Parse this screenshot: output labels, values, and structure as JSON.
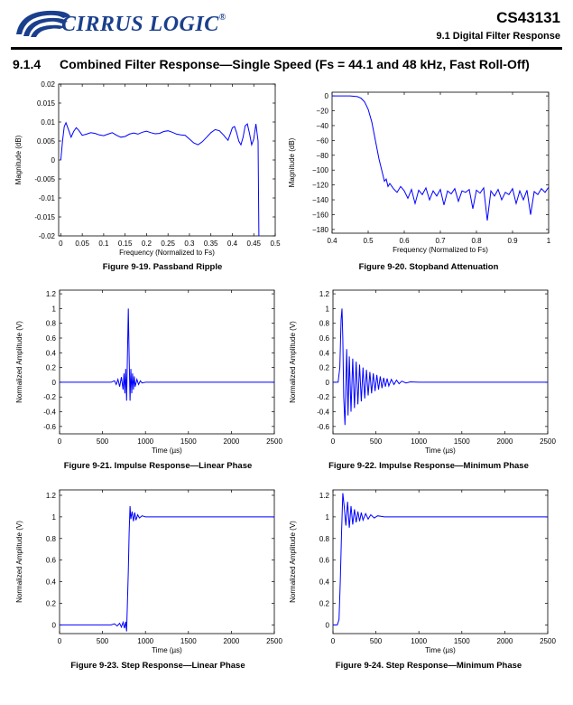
{
  "header": {
    "company": "CIRRUS LOGIC",
    "trademark": "®",
    "doc_id": "CS43131",
    "section": "9.1 Digital Filter Response"
  },
  "section_title": {
    "number": "9.1.4",
    "text": "Combined Filter Response—Single Speed (Fs = 44.1 and 48 kHz, Fast Roll-Off)"
  },
  "colors": {
    "trace": "#0000ff",
    "brand": "#1a3f8c"
  },
  "chart_data": [
    {
      "id": "fig19",
      "type": "line",
      "caption": "Figure 9-19. Passband Ripple",
      "xlabel": "Frequency (Normalized to Fs)",
      "ylabel": "Magnitude (dB)",
      "xlim": [
        -0.005,
        0.5
      ],
      "ylim": [
        -0.02,
        0.02
      ],
      "xticks": [
        0,
        0.05,
        0.1,
        0.15,
        0.2,
        0.25,
        0.3,
        0.35,
        0.4,
        0.45,
        0.5
      ],
      "xtick_labels": [
        "0",
        "0.05",
        "0.1",
        "0.15",
        "0.2",
        "0.25",
        "0.3",
        "0.35",
        "0.4",
        "0.45",
        "0.5"
      ],
      "yticks": [
        -0.02,
        -0.015,
        -0.01,
        -0.005,
        0,
        0.005,
        0.01,
        0.015,
        0.02
      ],
      "ytick_labels": [
        "-0.02",
        "-0.015",
        "-0.01",
        "-0.005",
        "0",
        "0.005",
        "0.01",
        "0.015",
        "0.02"
      ],
      "grid": false,
      "x": [
        0,
        0.004,
        0.008,
        0.012,
        0.018,
        0.024,
        0.03,
        0.036,
        0.042,
        0.05,
        0.06,
        0.07,
        0.08,
        0.09,
        0.1,
        0.11,
        0.12,
        0.13,
        0.14,
        0.15,
        0.16,
        0.17,
        0.18,
        0.19,
        0.2,
        0.21,
        0.22,
        0.23,
        0.24,
        0.25,
        0.26,
        0.27,
        0.28,
        0.29,
        0.3,
        0.31,
        0.32,
        0.33,
        0.34,
        0.35,
        0.36,
        0.37,
        0.38,
        0.385,
        0.39,
        0.395,
        0.4,
        0.405,
        0.41,
        0.415,
        0.42,
        0.425,
        0.43,
        0.435,
        0.44,
        0.445,
        0.45,
        0.455,
        0.46,
        0.462
      ],
      "y": [
        0,
        0.005,
        0.0088,
        0.0098,
        0.008,
        0.006,
        0.0075,
        0.0085,
        0.0078,
        0.0065,
        0.0068,
        0.0072,
        0.007,
        0.0066,
        0.0064,
        0.0068,
        0.0072,
        0.0065,
        0.006,
        0.0062,
        0.0068,
        0.0071,
        0.0068,
        0.0073,
        0.0076,
        0.0072,
        0.0069,
        0.007,
        0.0075,
        0.0077,
        0.0073,
        0.0068,
        0.0066,
        0.0065,
        0.0055,
        0.0045,
        0.004,
        0.0048,
        0.006,
        0.0072,
        0.008,
        0.0077,
        0.0065,
        0.0058,
        0.0052,
        0.0068,
        0.0085,
        0.0088,
        0.0072,
        0.005,
        0.004,
        0.006,
        0.009,
        0.0095,
        0.007,
        0.004,
        0.0055,
        0.0095,
        0.005,
        -0.02
      ]
    },
    {
      "id": "fig20",
      "type": "line",
      "caption": "Figure 9-20. Stopband Attenuation",
      "xlabel": "Frequency (Normalized to Fs)",
      "ylabel": "Magnitude (dB)",
      "xlim": [
        0.4,
        1
      ],
      "ylim": [
        -185,
        5
      ],
      "xticks": [
        0.4,
        0.5,
        0.6,
        0.7,
        0.8,
        0.9,
        1
      ],
      "xtick_labels": [
        "0.4",
        "0.5",
        "0.6",
        "0.7",
        "0.8",
        "0.9",
        "1"
      ],
      "yticks": [
        0,
        -20,
        -40,
        -60,
        -80,
        -100,
        -120,
        -140,
        -160,
        -180
      ],
      "ytick_labels": [
        "0",
        "−20",
        "−40",
        "−60",
        "−80",
        "−100",
        "−120",
        "−140",
        "−160",
        "−180"
      ],
      "grid": false,
      "x": [
        0.4,
        0.45,
        0.47,
        0.48,
        0.49,
        0.5,
        0.51,
        0.52,
        0.53,
        0.54,
        0.545,
        0.55,
        0.555,
        0.56,
        0.57,
        0.58,
        0.59,
        0.6,
        0.61,
        0.62,
        0.63,
        0.64,
        0.65,
        0.66,
        0.67,
        0.68,
        0.69,
        0.7,
        0.71,
        0.72,
        0.73,
        0.74,
        0.75,
        0.76,
        0.77,
        0.78,
        0.79,
        0.8,
        0.81,
        0.82,
        0.83,
        0.84,
        0.85,
        0.86,
        0.87,
        0.88,
        0.89,
        0.9,
        0.91,
        0.92,
        0.93,
        0.94,
        0.95,
        0.96,
        0.97,
        0.98,
        0.99,
        1
      ],
      "y": [
        0,
        0,
        -1,
        -3,
        -8,
        -18,
        -35,
        -60,
        -85,
        -105,
        -115,
        -112,
        -122,
        -118,
        -125,
        -130,
        -122,
        -128,
        -138,
        -126,
        -145,
        -127,
        -133,
        -124,
        -140,
        -128,
        -135,
        -126,
        -147,
        -128,
        -132,
        -125,
        -142,
        -128,
        -130,
        -126,
        -152,
        -127,
        -131,
        -124,
        -168,
        -128,
        -135,
        -126,
        -140,
        -130,
        -133,
        -125,
        -145,
        -128,
        -140,
        -127,
        -160,
        -129,
        -133,
        -125,
        -130,
        -123
      ]
    },
    {
      "id": "fig21",
      "type": "line",
      "caption": "Figure 9-21. Impulse Response—Linear Phase",
      "xlabel": "Time (µs)",
      "ylabel": "Normalized Amplitude (V)",
      "xlim": [
        0,
        2500
      ],
      "ylim": [
        -0.7,
        1.25
      ],
      "xticks": [
        0,
        500,
        1000,
        1500,
        2000,
        2500
      ],
      "xtick_labels": [
        "0",
        "500",
        "1000",
        "1500",
        "2000",
        "2500"
      ],
      "yticks": [
        -0.6,
        -0.4,
        -0.2,
        0,
        0.2,
        0.4,
        0.6,
        0.8,
        1,
        1.2
      ],
      "ytick_labels": [
        "-0.6",
        "-0.4",
        "-0.2",
        "0",
        "0.2",
        "0.4",
        "0.6",
        "0.8",
        "1",
        "1.2"
      ],
      "grid": false,
      "x": [
        0,
        600,
        640,
        660,
        680,
        700,
        720,
        740,
        750,
        760,
        770,
        780,
        790,
        800,
        810,
        820,
        830,
        840,
        850,
        860,
        870,
        880,
        900,
        920,
        940,
        960,
        1000,
        2500
      ],
      "y": [
        0,
        0,
        0.02,
        -0.03,
        0.04,
        -0.06,
        0.07,
        -0.1,
        0.12,
        -0.15,
        0.18,
        -0.25,
        0.35,
        1.0,
        0.35,
        -0.25,
        0.18,
        -0.15,
        0.12,
        -0.1,
        0.08,
        -0.06,
        0.04,
        -0.03,
        0.02,
        -0.01,
        0,
        0
      ]
    },
    {
      "id": "fig22",
      "type": "line",
      "caption": "Figure 9-22. Impulse Response—Minimum Phase",
      "xlabel": "Time (µs)",
      "ylabel": "Normalized Amplitude (V)",
      "xlim": [
        0,
        2500
      ],
      "ylim": [
        -0.7,
        1.25
      ],
      "xticks": [
        0,
        500,
        1000,
        1500,
        2000,
        2500
      ],
      "xtick_labels": [
        "0",
        "500",
        "1000",
        "1500",
        "2000",
        "2500"
      ],
      "yticks": [
        -0.6,
        -0.4,
        -0.2,
        0,
        0.2,
        0.4,
        0.6,
        0.8,
        1,
        1.2
      ],
      "ytick_labels": [
        "-0.6",
        "-0.4",
        "-0.2",
        "0",
        "0.2",
        "0.4",
        "0.6",
        "0.8",
        "1",
        "1.2"
      ],
      "grid": false,
      "x": [
        0,
        60,
        80,
        95,
        105,
        115,
        125,
        140,
        160,
        175,
        190,
        210,
        230,
        250,
        270,
        290,
        310,
        330,
        350,
        370,
        390,
        410,
        430,
        450,
        470,
        490,
        510,
        530,
        550,
        570,
        590,
        610,
        630,
        650,
        680,
        710,
        740,
        770,
        800,
        850,
        900,
        1000,
        2500
      ],
      "y": [
        0,
        0,
        0.2,
        0.85,
        1.0,
        0.6,
        -0.2,
        -0.58,
        0.45,
        -0.45,
        0.35,
        -0.4,
        0.32,
        -0.35,
        0.28,
        -0.3,
        0.24,
        -0.26,
        0.2,
        -0.22,
        0.17,
        -0.18,
        0.14,
        -0.15,
        0.12,
        -0.12,
        0.1,
        -0.1,
        0.08,
        -0.08,
        0.06,
        -0.06,
        0.05,
        -0.05,
        0.04,
        -0.03,
        0.03,
        -0.02,
        0.015,
        -0.01,
        0.005,
        0,
        0
      ]
    },
    {
      "id": "fig23",
      "type": "line",
      "caption": "Figure 9-23. Step Response—Linear Phase",
      "xlabel": "Time (µs)",
      "ylabel": "Normalized Amplitude (V)",
      "xlim": [
        0,
        2500
      ],
      "ylim": [
        -0.08,
        1.25
      ],
      "xticks": [
        0,
        500,
        1000,
        1500,
        2000,
        2500
      ],
      "xtick_labels": [
        "0",
        "500",
        "1000",
        "1500",
        "2000",
        "2500"
      ],
      "yticks": [
        0,
        0.2,
        0.4,
        0.6,
        0.8,
        1,
        1.2
      ],
      "ytick_labels": [
        "0",
        "0.2",
        "0.4",
        "0.6",
        "0.8",
        "1",
        "1.2"
      ],
      "grid": false,
      "x": [
        0,
        600,
        640,
        670,
        700,
        720,
        740,
        755,
        770,
        780,
        790,
        800,
        810,
        820,
        830,
        845,
        860,
        875,
        890,
        910,
        930,
        960,
        1000,
        2500
      ],
      "y": [
        0,
        0,
        0.01,
        -0.01,
        0.015,
        -0.02,
        0.025,
        -0.03,
        0.03,
        -0.06,
        0.2,
        0.5,
        0.85,
        1.1,
        0.98,
        1.05,
        0.96,
        1.04,
        0.97,
        1.02,
        0.99,
        1.01,
        1.0,
        1.0
      ]
    },
    {
      "id": "fig24",
      "type": "line",
      "caption": "Figure 9-24. Step Response—Minimum Phase",
      "xlabel": "Time (µs)",
      "ylabel": "Normalized Amplitude (V)",
      "xlim": [
        0,
        2500
      ],
      "ylim": [
        -0.08,
        1.25
      ],
      "xticks": [
        0,
        500,
        1000,
        1500,
        2000,
        2500
      ],
      "xtick_labels": [
        "0",
        "500",
        "1000",
        "1500",
        "2000",
        "2500"
      ],
      "yticks": [
        0,
        0.2,
        0.4,
        0.6,
        0.8,
        1,
        1.2
      ],
      "ytick_labels": [
        "0",
        "0.2",
        "0.4",
        "0.6",
        "0.8",
        "1",
        "1.2"
      ],
      "grid": false,
      "x": [
        0,
        50,
        70,
        85,
        100,
        115,
        130,
        150,
        170,
        190,
        210,
        230,
        250,
        270,
        290,
        310,
        330,
        350,
        380,
        410,
        440,
        480,
        520,
        600,
        2500
      ],
      "y": [
        0,
        0,
        0.05,
        0.4,
        0.85,
        1.22,
        1.1,
        0.92,
        1.14,
        0.9,
        1.1,
        0.93,
        1.07,
        0.95,
        1.05,
        0.96,
        1.04,
        0.97,
        1.03,
        0.98,
        1.02,
        0.99,
        1.01,
        1.0,
        1.0
      ]
    }
  ]
}
